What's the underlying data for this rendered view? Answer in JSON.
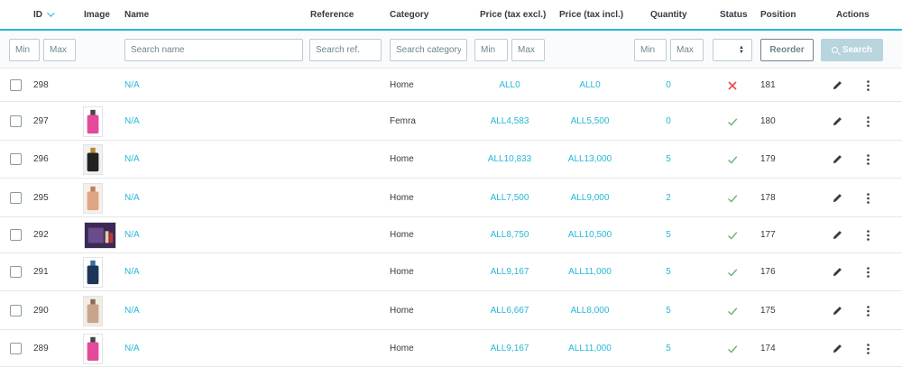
{
  "header": {
    "id": "ID",
    "image": "Image",
    "name": "Name",
    "reference": "Reference",
    "category": "Category",
    "price_excl": "Price (tax excl.)",
    "price_incl": "Price (tax incl.)",
    "quantity": "Quantity",
    "status": "Status",
    "position": "Position",
    "actions": "Actions"
  },
  "filters": {
    "id_min": "Min",
    "id_max": "Max",
    "name": "Search name",
    "reference": "Search ref.",
    "category": "Search category",
    "price_min": "Min",
    "price_max": "Max",
    "qty_min": "Min",
    "qty_max": "Max",
    "reorder": "Reorder",
    "search": "Search"
  },
  "colors": {
    "accent": "#25b9d7",
    "ok": "#70b580",
    "error": "#e84b4b"
  },
  "rows": [
    {
      "id": "298",
      "name": "N/A",
      "category": "Home",
      "price_excl": "ALL0",
      "price_incl": "ALL0",
      "quantity": "0",
      "status": "disabled",
      "position": "181",
      "image": "none"
    },
    {
      "id": "297",
      "name": "N/A",
      "category": "Femra",
      "price_excl": "ALL4,583",
      "price_incl": "ALL5,500",
      "quantity": "0",
      "status": "enabled",
      "position": "180",
      "image": "perfume-bottle"
    },
    {
      "id": "296",
      "name": "N/A",
      "category": "Home",
      "price_excl": "ALL10,833",
      "price_incl": "ALL13,000",
      "quantity": "5",
      "status": "enabled",
      "position": "179",
      "image": "perfume-bottle"
    },
    {
      "id": "295",
      "name": "N/A",
      "category": "Home",
      "price_excl": "ALL7,500",
      "price_incl": "ALL9,000",
      "quantity": "2",
      "status": "enabled",
      "position": "178",
      "image": "perfume-bottle"
    },
    {
      "id": "292",
      "name": "N/A",
      "category": "Home",
      "price_excl": "ALL8,750",
      "price_incl": "ALL10,500",
      "quantity": "5",
      "status": "enabled",
      "position": "177",
      "image": "gift-set"
    },
    {
      "id": "291",
      "name": "N/A",
      "category": "Home",
      "price_excl": "ALL9,167",
      "price_incl": "ALL11,000",
      "quantity": "5",
      "status": "enabled",
      "position": "176",
      "image": "perfume-bottle"
    },
    {
      "id": "290",
      "name": "N/A",
      "category": "Home",
      "price_excl": "ALL6,667",
      "price_incl": "ALL8,000",
      "quantity": "5",
      "status": "enabled",
      "position": "175",
      "image": "perfume-bottle"
    },
    {
      "id": "289",
      "name": "N/A",
      "category": "Home",
      "price_excl": "ALL9,167",
      "price_incl": "ALL11,000",
      "quantity": "5",
      "status": "enabled",
      "position": "174",
      "image": "perfume-bottle"
    }
  ]
}
